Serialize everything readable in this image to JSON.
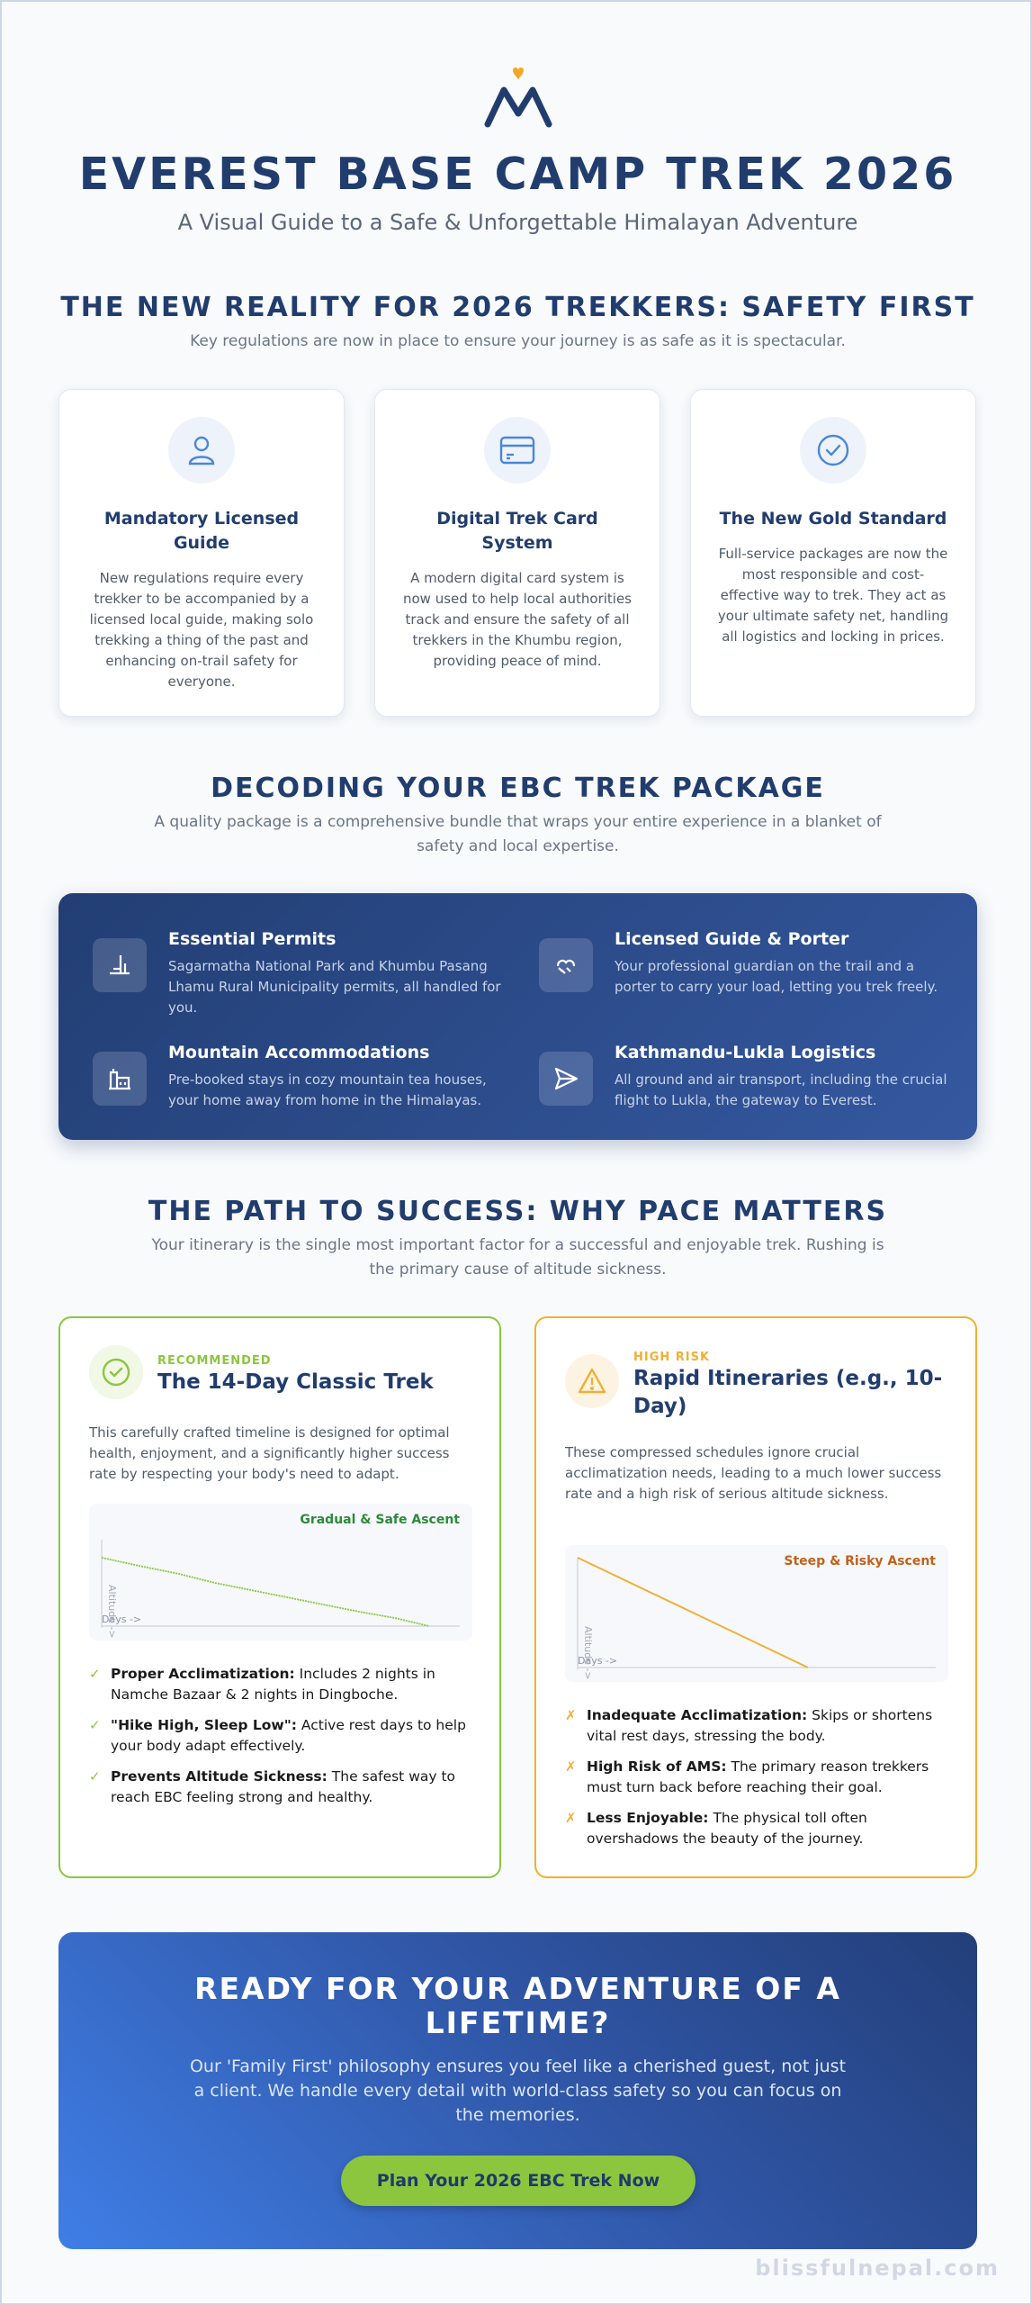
{
  "header": {
    "title": "EVEREST BASE CAMP TREK 2026",
    "subtitle": "A Visual Guide to a Safe & Unforgettable Himalayan Adventure",
    "logo_icon": "mountain-heart-icon",
    "colors": {
      "navy": "#213d6e",
      "accent_orange": "#f5a623"
    }
  },
  "safety": {
    "title": "THE NEW REALITY FOR 2026 TREKKERS: SAFETY FIRST",
    "subtitle": "Key regulations are now in place to ensure your journey is as safe as it is spectacular.",
    "cards": [
      {
        "icon": "user-icon",
        "title": "Mandatory Licensed Guide",
        "text": "New regulations require every trekker to be accompanied by a licensed local guide, making solo trekking a thing of the past and enhancing on-trail safety for everyone."
      },
      {
        "icon": "card-icon",
        "title": "Digital Trek Card System",
        "text": "A modern digital card system is now used to help local authorities track and ensure the safety of all trekkers in the Khumbu region, providing peace of mind."
      },
      {
        "icon": "check-circle-icon",
        "title": "The New Gold Standard",
        "text": "Full-service packages are now the most responsible and cost-effective way to trek. They act as your ultimate safety net, handling all logistics and locking in prices."
      }
    ]
  },
  "package": {
    "title": "DECODING YOUR EBC TREK PACKAGE",
    "subtitle": "A quality package is a comprehensive bundle that wraps your entire experience in a blanket of safety and local expertise.",
    "items": [
      {
        "icon": "permit-icon",
        "title": "Essential Permits",
        "text": "Sagarmatha National Park and Khumbu Pasang Lhamu Rural Municipality permits, all handled for you."
      },
      {
        "icon": "guide-icon",
        "title": "Licensed Guide & Porter",
        "text": "Your professional guardian on the trail and a porter to carry your load, letting you trek freely."
      },
      {
        "icon": "building-icon",
        "title": "Mountain Accommodations",
        "text": "Pre-booked stays in cozy mountain tea houses, your home away from home in the Himalayas."
      },
      {
        "icon": "paper-plane-icon",
        "title": "Kathmandu-Lukla Logistics",
        "text": "All ground and air transport, including the crucial flight to Lukla, the gateway to Everest."
      }
    ]
  },
  "pace": {
    "title": "THE PATH TO SUCCESS: WHY PACE MATTERS",
    "subtitle": "Your itinerary is the single most important factor for a successful and enjoyable trek. Rushing is the primary cause of altitude sickness.",
    "recommended": {
      "tag": "RECOMMENDED",
      "title": "The 14-Day Classic Trek",
      "text": "This carefully crafted timeline is designed for optimal health, enjoyment, and a significantly higher success rate by respecting your body's need to adapt.",
      "chart_label": "Gradual & Safe Ascent",
      "axis_x": "Days ->",
      "axis_y": "Altitude ->",
      "color": "#8cc63f",
      "bullets": [
        {
          "bold": "Proper Acclimatization:",
          "text": " Includes 2 nights in Namche Bazaar & 2 nights in Dingboche."
        },
        {
          "bold": "\"Hike High, Sleep Low\":",
          "text": " Active rest days to help your body adapt effectively."
        },
        {
          "bold": "Prevents Altitude Sickness:",
          "text": " The safest way to reach EBC feeling strong and healthy."
        }
      ]
    },
    "risky": {
      "tag": "HIGH RISK",
      "title": "Rapid Itineraries (e.g., 10-Day)",
      "text": "These compressed schedules ignore crucial acclimatization needs, leading to a much lower success rate and a high risk of serious altitude sickness.",
      "chart_label": "Steep & Risky Ascent",
      "axis_x": "Days ->",
      "axis_y": "Altitude ->",
      "color": "#f0b033",
      "bullets": [
        {
          "bold": "Inadequate Acclimatization:",
          "text": " Skips or shortens vital rest days, stressing the body."
        },
        {
          "bold": "High Risk of AMS:",
          "text": " The primary reason trekkers must turn back before reaching their goal."
        },
        {
          "bold": "Less Enjoyable:",
          "text": " The physical toll often overshadows the beauty of the journey."
        }
      ]
    }
  },
  "cta": {
    "title": "READY FOR YOUR ADVENTURE OF A LIFETIME?",
    "text": "Our 'Family First' philosophy ensures you feel like a cherished guest, not just a client. We handle every detail with world-class safety so you can focus on the memories.",
    "button": "Plan Your 2026 EBC Trek Now"
  },
  "watermark": "blissfulnepal.com"
}
